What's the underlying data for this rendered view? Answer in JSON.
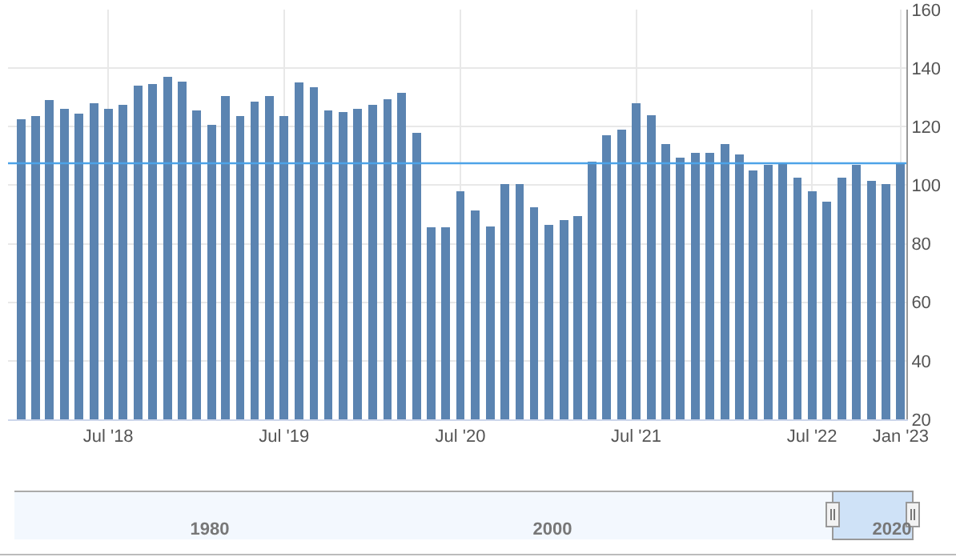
{
  "chart_data": {
    "type": "bar",
    "x": [
      "2018-01",
      "2018-02",
      "2018-03",
      "2018-04",
      "2018-05",
      "2018-06",
      "2018-07",
      "2018-08",
      "2018-09",
      "2018-10",
      "2018-11",
      "2018-12",
      "2019-01",
      "2019-02",
      "2019-03",
      "2019-04",
      "2019-05",
      "2019-06",
      "2019-07",
      "2019-08",
      "2019-09",
      "2019-10",
      "2019-11",
      "2019-12",
      "2020-01",
      "2020-02",
      "2020-03",
      "2020-04",
      "2020-05",
      "2020-06",
      "2020-07",
      "2020-08",
      "2020-09",
      "2020-10",
      "2020-11",
      "2020-12",
      "2021-01",
      "2021-02",
      "2021-03",
      "2021-04",
      "2021-05",
      "2021-06",
      "2021-07",
      "2021-08",
      "2021-09",
      "2021-10",
      "2021-11",
      "2021-12",
      "2022-01",
      "2022-02",
      "2022-03",
      "2022-04",
      "2022-05",
      "2022-06",
      "2022-07",
      "2022-08",
      "2022-09",
      "2022-10",
      "2022-11",
      "2022-12",
      "2023-01"
    ],
    "values": [
      122.5,
      123.5,
      129,
      126,
      124.5,
      128,
      126,
      127.5,
      134,
      134.5,
      137,
      135.5,
      125.5,
      120.5,
      130.5,
      123.5,
      128.5,
      130.5,
      123.5,
      135,
      133.5,
      125.5,
      125,
      126,
      127.5,
      129.5,
      131.5,
      118,
      85.5,
      85.5,
      98,
      91.5,
      86,
      100.5,
      100.5,
      92.5,
      86.5,
      88,
      89.5,
      108,
      117,
      119,
      128,
      124,
      114,
      109.5,
      111,
      111,
      114,
      110.5,
      105,
      107,
      107.5,
      102.5,
      98,
      94.5,
      102.5,
      107,
      101.5,
      100.5,
      107.5
    ],
    "color": "#5b84b1",
    "xlim": [
      "2017-12-05",
      "2023-01-13"
    ],
    "xticks": [
      {
        "value": "2018-07",
        "label": "Jul '18"
      },
      {
        "value": "2019-07",
        "label": "Jul '19"
      },
      {
        "value": "2020-07",
        "label": "Jul '20"
      },
      {
        "value": "2021-07",
        "label": "Jul '21"
      },
      {
        "value": "2022-07",
        "label": "Jul '22"
      },
      {
        "value": "2023-01",
        "label": "Jan '23"
      }
    ],
    "ylim": [
      20,
      160
    ],
    "yticks": [
      20,
      40,
      60,
      80,
      100,
      120,
      140,
      160
    ],
    "grid": true,
    "legend": false,
    "ref_lines": [
      {
        "axis": "y",
        "value": 107.5,
        "color": "#4da3e8"
      }
    ],
    "annotations": [
      "1980",
      "2000",
      "2020"
    ]
  }
}
